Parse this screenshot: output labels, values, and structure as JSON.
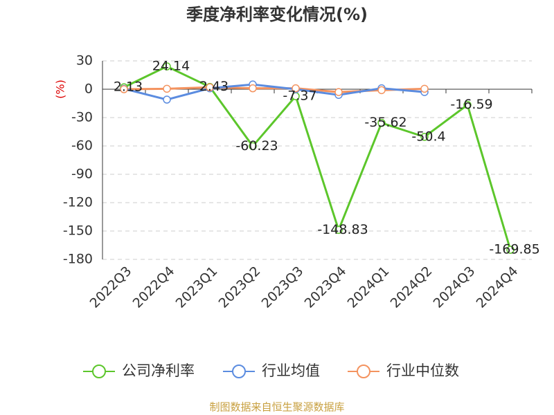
{
  "chart_data": {
    "type": "line",
    "title": "季度净利率变化情况(%)",
    "y_label": "(%)",
    "categories": [
      "2022Q3",
      "2022Q4",
      "2023Q1",
      "2023Q2",
      "2023Q3",
      "2023Q4",
      "2024Q1",
      "2024Q2",
      "2024Q3",
      "2024Q4"
    ],
    "series": [
      {
        "name": "公司净利率",
        "color": "#5cc62b",
        "values": [
          2.13,
          24.14,
          2.43,
          -60.23,
          -7.37,
          -148.83,
          -35.62,
          -50.4,
          -16.59,
          -169.85
        ],
        "show_labels": true
      },
      {
        "name": "行业均值",
        "color": "#5b8ce0",
        "values": [
          0.5,
          -11,
          1,
          5,
          0,
          -6,
          1,
          -3,
          null,
          null
        ]
      },
      {
        "name": "行业中位数",
        "color": "#f4935f",
        "values": [
          0,
          0.5,
          2,
          1,
          1,
          -3,
          -1,
          0.5,
          null,
          null
        ]
      }
    ],
    "ylim": [
      -180,
      30
    ],
    "yticks": [
      30,
      0,
      -30,
      -60,
      -90,
      -120,
      -150,
      -180
    ],
    "grid": true,
    "source": "制图数据来自恒生聚源数据库"
  }
}
